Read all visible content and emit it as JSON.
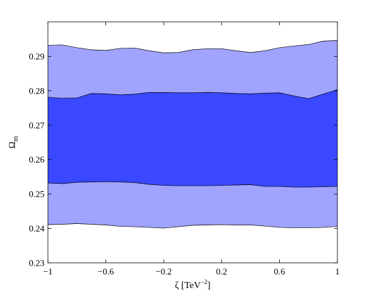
{
  "chart_data": {
    "type": "area",
    "title": "",
    "xlabel": {
      "base": "ζ [TeV",
      "sup": "−2",
      "tail": "]"
    },
    "ylabel": {
      "base": "Ω",
      "sub": "m"
    },
    "xlim": [
      -1,
      1
    ],
    "ylim": [
      0.23,
      0.3
    ],
    "xticks": [
      -1,
      -0.6,
      -0.2,
      0.2,
      0.6,
      1
    ],
    "xtick_labels": [
      "−1",
      "−0.6",
      "−0.2",
      "0.2",
      "0.6",
      "1"
    ],
    "yticks": [
      0.23,
      0.24,
      0.25,
      0.26,
      0.27,
      0.28,
      0.29
    ],
    "ytick_labels": [
      "0.23",
      "0.24",
      "0.25",
      "0.26",
      "0.27",
      "0.28",
      "0.29"
    ],
    "grid": false,
    "x": [
      -1.0,
      -0.9,
      -0.8,
      -0.7,
      -0.6,
      -0.5,
      -0.4,
      -0.3,
      -0.2,
      -0.1,
      0.0,
      0.1,
      0.2,
      0.3,
      0.4,
      0.5,
      0.6,
      0.7,
      0.8,
      0.9,
      1.0
    ],
    "series": [
      {
        "level": "outer",
        "color": "#a0a4ff",
        "upper": [
          0.2932,
          0.2933,
          0.2925,
          0.2919,
          0.2917,
          0.2923,
          0.2924,
          0.2916,
          0.291,
          0.2911,
          0.2919,
          0.2922,
          0.2922,
          0.2916,
          0.2911,
          0.2916,
          0.2925,
          0.293,
          0.2934,
          0.2944,
          0.2946
        ],
        "lower": [
          0.2411,
          0.2412,
          0.2414,
          0.2412,
          0.241,
          0.2406,
          0.2405,
          0.2403,
          0.2401,
          0.2405,
          0.2409,
          0.241,
          0.2411,
          0.241,
          0.241,
          0.2407,
          0.2403,
          0.2402,
          0.2402,
          0.2403,
          0.2406
        ]
      },
      {
        "level": "inner",
        "color": "#3a48ff",
        "upper": [
          0.2781,
          0.2778,
          0.2779,
          0.2792,
          0.2791,
          0.2788,
          0.279,
          0.2795,
          0.2795,
          0.2794,
          0.2794,
          0.2795,
          0.2794,
          0.2792,
          0.2791,
          0.2793,
          0.2794,
          0.2785,
          0.2777,
          0.279,
          0.2803
        ],
        "lower": [
          0.2532,
          0.253,
          0.2534,
          0.2535,
          0.2536,
          0.2535,
          0.2533,
          0.2528,
          0.2525,
          0.2524,
          0.2524,
          0.2524,
          0.2525,
          0.2526,
          0.2527,
          0.2522,
          0.2522,
          0.252,
          0.252,
          0.2521,
          0.2522
        ]
      }
    ]
  }
}
